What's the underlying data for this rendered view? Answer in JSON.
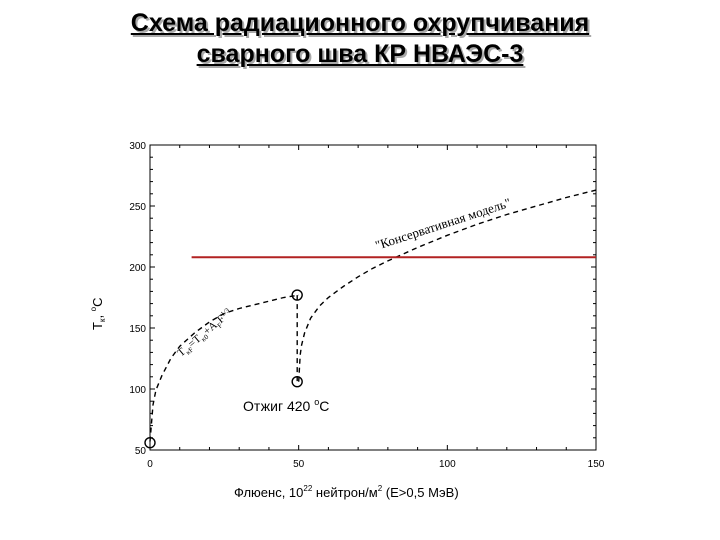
{
  "slide": {
    "title_line1": "Схема радиационного охрупчивания",
    "title_line2": "сварного шва КР НВАЭС-3"
  },
  "chart_data": {
    "type": "line",
    "xlabel_prefix": "Флюенс, 10",
    "xlabel_sup1": "22",
    "xlabel_mid": " нейтрон/м",
    "xlabel_sup2": "2",
    "xlabel_suffix": " (E>0,5 МэВ)",
    "ylabel_main": "T",
    "ylabel_sub": "к",
    "ylabel_sep": ", ",
    "ylabel_sup": "o",
    "ylabel_unit": "C",
    "xlim": [
      0,
      150
    ],
    "ylim": [
      50,
      300
    ],
    "xticks": [
      0,
      50,
      100,
      150
    ],
    "yticks": [
      50,
      100,
      150,
      200,
      250,
      300
    ],
    "grid": false,
    "colors": {
      "axis": "#000000",
      "curve": "#000000",
      "limit_line": "#b22222"
    },
    "series": [
      {
        "role": "embrittlement-curve",
        "style": "dashed",
        "x": [
          0,
          1,
          2,
          4,
          7,
          10,
          15,
          20,
          25,
          30,
          35,
          40,
          45,
          50
        ],
        "y": [
          57,
          87,
          99,
          111,
          125,
          135,
          146,
          155,
          162,
          166,
          169,
          172,
          175,
          177
        ]
      },
      {
        "role": "annealing-drop",
        "style": "dashed",
        "x": [
          49.5,
          49.5
        ],
        "y": [
          177,
          106
        ]
      },
      {
        "role": "conservative-model",
        "style": "dashed",
        "x": [
          50,
          50.5,
          51,
          52,
          54,
          57,
          60,
          65,
          70,
          75,
          80,
          90,
          100,
          110,
          120,
          130,
          140,
          150
        ],
        "y": [
          106,
          128,
          136,
          146,
          158,
          168,
          175,
          184,
          192,
          199,
          205,
          216,
          226,
          235,
          243,
          250,
          257,
          263
        ]
      },
      {
        "role": "limit-line",
        "style": "solid",
        "x": [
          14,
          150
        ],
        "y": [
          208,
          208
        ]
      }
    ],
    "markers": [
      {
        "x": 0,
        "y": 56
      },
      {
        "x": 49.5,
        "y": 177
      },
      {
        "x": 49.5,
        "y": 106
      }
    ],
    "annotations": {
      "formula_parts": [
        "T",
        "кF",
        "=T",
        "к0",
        "+A",
        "F",
        "F",
        "1/3"
      ],
      "conservative": "\"Консервативная модель\"",
      "annealing_prefix": "Отжиг 420 ",
      "annealing_sup": "o",
      "annealing_suffix": "C"
    }
  }
}
